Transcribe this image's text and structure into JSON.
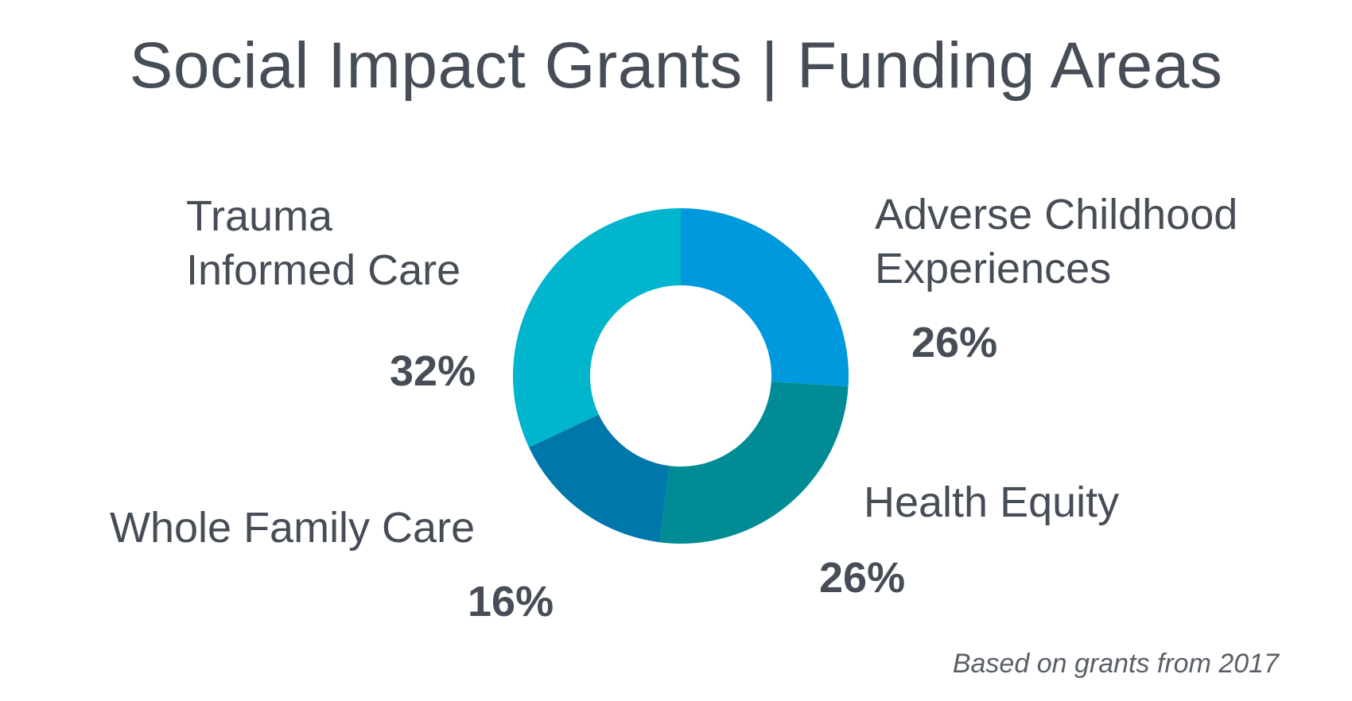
{
  "chart_data": {
    "type": "pie",
    "title": "Social Impact Grants | Funding Areas",
    "donut": true,
    "slices": [
      {
        "label": [
          "Adverse Childhood",
          "Experiences"
        ],
        "value": 26,
        "value_label": "26%",
        "color": "#0099dd"
      },
      {
        "label": [
          "Health Equity"
        ],
        "value": 26,
        "value_label": "26%",
        "color": "#008b95"
      },
      {
        "label": [
          "Whole Family Care"
        ],
        "value": 16,
        "value_label": "16%",
        "color": "#0077aa"
      },
      {
        "label": [
          "Trauma",
          "Informed Care"
        ],
        "value": 32,
        "value_label": "32%",
        "color": "#00b5cc"
      }
    ],
    "start_angle_deg": 0,
    "direction": "clockwise",
    "legend": "none",
    "footnote": "Based on grants from 2017"
  }
}
